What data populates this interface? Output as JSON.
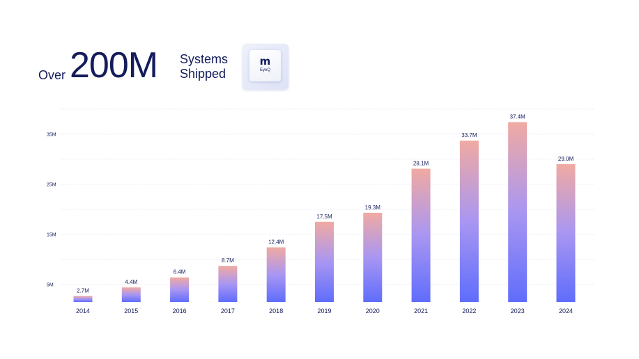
{
  "headline": {
    "prefix": "Over",
    "number": "200M",
    "suffix_line1": "Systems",
    "suffix_line2": "Shipped"
  },
  "chip": {
    "logo_text": "m",
    "label": "EyeQ"
  },
  "colors": {
    "text": "#141c5c",
    "bar_top": "#f0aaa2",
    "bar_mid": "#a996f2",
    "bar_bottom": "#5f6dfb",
    "grid": "#e6e8f2"
  },
  "chart_data": {
    "type": "bar",
    "title": "",
    "xlabel": "",
    "ylabel": "",
    "categories": [
      "2014",
      "2015",
      "2016",
      "2017",
      "2018",
      "2019",
      "2020",
      "2021",
      "2022",
      "2023",
      "2024"
    ],
    "values": [
      2.7,
      4.4,
      6.4,
      8.7,
      12.4,
      17.5,
      19.3,
      28.1,
      33.7,
      37.4,
      29.0
    ],
    "data_labels": [
      "2.7M",
      "4.4M",
      "6.4M",
      "8.7M",
      "12.4M",
      "17.5M",
      "19.3M",
      "28.1M",
      "33.7M",
      "37.4M",
      "29.0M"
    ],
    "y_ticks": [
      5,
      15,
      25,
      35
    ],
    "y_tick_labels": [
      "5M",
      "15M",
      "25M",
      "35M"
    ],
    "ylim": [
      1.5,
      41.5
    ],
    "grid": true,
    "legend": "none"
  }
}
